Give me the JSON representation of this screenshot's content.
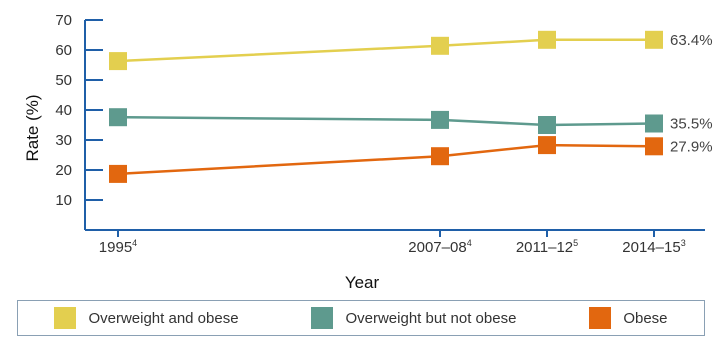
{
  "chart_data": {
    "type": "line",
    "x": [
      "1995",
      "2007–08",
      "2011–12",
      "2014–15"
    ],
    "x_superscripts": [
      "4",
      "4",
      "5",
      "3"
    ],
    "xlabel": "Year",
    "ylabel": "Rate (%)",
    "ylim": [
      0,
      70
    ],
    "yticks": [
      10,
      20,
      30,
      40,
      50,
      60,
      70
    ],
    "grid": false,
    "legend_position": "bottom",
    "series": [
      {
        "name": "Overweight and obese",
        "color": "#e3cf4f",
        "values": [
          56.3,
          61.4,
          63.4,
          63.4
        ],
        "end_label": "63.4%"
      },
      {
        "name": "Overweight but not obese",
        "color": "#5e9a8e",
        "values": [
          37.6,
          36.7,
          35.0,
          35.5
        ],
        "end_label": "35.5%"
      },
      {
        "name": "Obese",
        "color": "#e2670f",
        "values": [
          18.7,
          24.6,
          28.3,
          27.9
        ],
        "end_label": "27.9%"
      }
    ]
  }
}
